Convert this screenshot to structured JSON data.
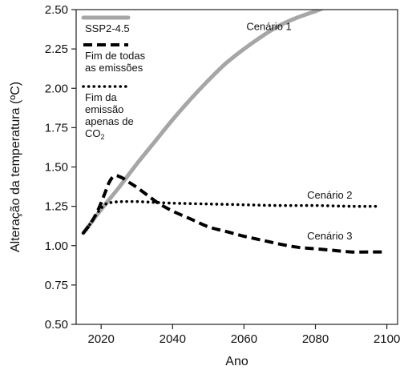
{
  "chart_data": {
    "type": "line",
    "xlabel": "Ano",
    "ylabel": "Alteração da temperatura (ºC)",
    "xlim": [
      2013,
      2103
    ],
    "ylim": [
      0.5,
      2.5
    ],
    "xticks": [
      2020,
      2040,
      2060,
      2080,
      2100
    ],
    "yticks": [
      0.5,
      0.75,
      1.0,
      1.25,
      1.5,
      1.75,
      2.0,
      2.25,
      2.5
    ],
    "ytick_labels": [
      "0.50",
      "0.75",
      "1.00",
      "1.25",
      "1.50",
      "1.75",
      "2.00",
      "2.25",
      "2.50"
    ],
    "grid": false,
    "legend_position": "top-left",
    "series": [
      {
        "name": "SSP2-4.5",
        "style": "solid",
        "color": "#a6a6a6",
        "x": [
          2015,
          2017,
          2020,
          2025,
          2030,
          2035,
          2040,
          2045,
          2050,
          2055,
          2060,
          2065,
          2070,
          2075,
          2080,
          2085,
          2087
        ],
        "y": [
          1.08,
          1.14,
          1.23,
          1.37,
          1.52,
          1.66,
          1.8,
          1.93,
          2.05,
          2.16,
          2.25,
          2.33,
          2.4,
          2.45,
          2.49,
          2.535,
          2.55
        ]
      },
      {
        "name": "Fim de todas as emissões",
        "style": "dashed",
        "color": "#000000",
        "x": [
          2015,
          2017,
          2019,
          2021,
          2022,
          2023,
          2024,
          2025,
          2026,
          2027,
          2028,
          2030,
          2033,
          2036,
          2040,
          2045,
          2050,
          2055,
          2060,
          2065,
          2070,
          2075,
          2080,
          2085,
          2090,
          2095,
          2099
        ],
        "y": [
          1.08,
          1.14,
          1.22,
          1.33,
          1.39,
          1.43,
          1.445,
          1.44,
          1.43,
          1.415,
          1.4,
          1.37,
          1.32,
          1.27,
          1.22,
          1.17,
          1.12,
          1.09,
          1.06,
          1.035,
          1.01,
          0.99,
          0.98,
          0.97,
          0.96,
          0.96,
          0.96
        ]
      },
      {
        "name": "Fim da emissão apenas de CO",
        "name_subscript": "2",
        "style": "dotted",
        "color": "#000000",
        "x": [
          2015,
          2017,
          2019,
          2021,
          2023,
          2026,
          2030,
          2035,
          2040,
          2050,
          2060,
          2070,
          2080,
          2090,
          2098
        ],
        "y": [
          1.08,
          1.14,
          1.21,
          1.26,
          1.275,
          1.28,
          1.28,
          1.275,
          1.27,
          1.265,
          1.26,
          1.255,
          1.255,
          1.25,
          1.25
        ]
      }
    ],
    "annotations": [
      {
        "text": "Cenário 1",
        "x": 2067,
        "y": 2.37
      },
      {
        "text": "Cenário 2",
        "x": 2084,
        "y": 1.3
      },
      {
        "text": "Cenário 3",
        "x": 2084,
        "y": 1.04
      }
    ],
    "legend": {
      "entries": [
        {
          "lines": [
            "SSP2-4.5"
          ]
        },
        {
          "lines": [
            "Fim de todas",
            "as emissões"
          ]
        },
        {
          "lines": [
            "Fim da",
            "emissão",
            "apenas de",
            "CO"
          ],
          "subscript": "2"
        }
      ]
    }
  }
}
